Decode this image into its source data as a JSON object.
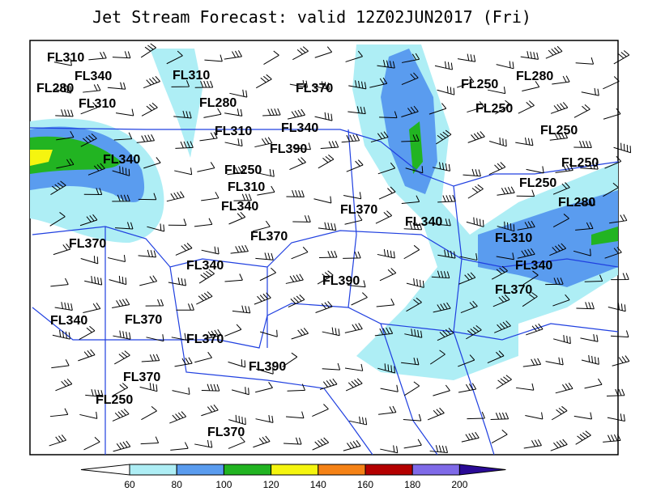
{
  "title": "Jet Stream Forecast:  valid 12Z02JUN2017 (Fri)",
  "labels": [
    "FL310",
    "FL340",
    "FL280",
    "FL310",
    "FL310",
    "FL280",
    "FL370",
    "FL340",
    "FL310",
    "FL390",
    "FL340",
    "FL250",
    "FL310",
    "FL340",
    "FL370",
    "FL340",
    "FL370",
    "FL370",
    "FL340",
    "FL390",
    "FL340",
    "FL370",
    "FL370",
    "FL390",
    "FL370",
    "FL250",
    "FL370",
    "FL250",
    "FL280",
    "FL250",
    "FL250",
    "FL250",
    "FL250",
    "FL280",
    "FL310",
    "FL340",
    "FL370"
  ],
  "colorbar": {
    "ticks": [
      60,
      80,
      100,
      120,
      140,
      160,
      180,
      200
    ],
    "colors": [
      "#ffffff",
      "#aeeef5",
      "#5a9cef",
      "#22b422",
      "#f5f50f",
      "#f58216",
      "#b40000",
      "#7f6ae8",
      "#2a0a96"
    ]
  }
}
